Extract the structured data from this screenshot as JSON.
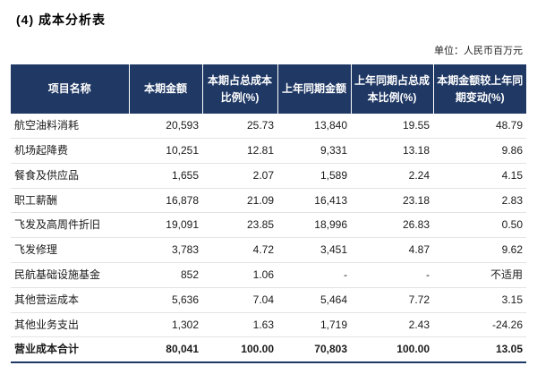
{
  "title": "(4) 成本分析表",
  "unit_label": "单位：人民币百万元",
  "colors": {
    "header_bg": "#1F3864",
    "header_text": "#FFFFFF",
    "row_border": "#E3E3E3",
    "table_bottom_border": "#1F3864"
  },
  "table": {
    "columns": [
      "项目名称",
      "本期金额",
      "本期占总成本比例(%)",
      "上年同期金额",
      "上年同期占总成本比例(%)",
      "本期金额较上年同期变动(%)"
    ],
    "rows": [
      [
        "航空油料消耗",
        "20,593",
        "25.73",
        "13,840",
        "19.55",
        "48.79"
      ],
      [
        "机场起降费",
        "10,251",
        "12.81",
        "9,331",
        "13.18",
        "9.86"
      ],
      [
        "餐食及供应品",
        "1,655",
        "2.07",
        "1,589",
        "2.24",
        "4.15"
      ],
      [
        "职工薪酬",
        "16,878",
        "21.09",
        "16,413",
        "23.18",
        "2.83"
      ],
      [
        "飞发及高周件折旧",
        "19,091",
        "23.85",
        "18,996",
        "26.83",
        "0.50"
      ],
      [
        "飞发修理",
        "3,783",
        "4.72",
        "3,451",
        "4.87",
        "9.62"
      ],
      [
        "民航基础设施基金",
        "852",
        "1.06",
        "-",
        "-",
        "不适用"
      ],
      [
        "其他营运成本",
        "5,636",
        "7.04",
        "5,464",
        "7.72",
        "3.15"
      ],
      [
        "其他业务支出",
        "1,302",
        "1.63",
        "1,719",
        "2.43",
        "-24.26"
      ]
    ],
    "total_row": [
      "营业成本合计",
      "80,041",
      "100.00",
      "70,803",
      "100.00",
      "13.05"
    ]
  }
}
